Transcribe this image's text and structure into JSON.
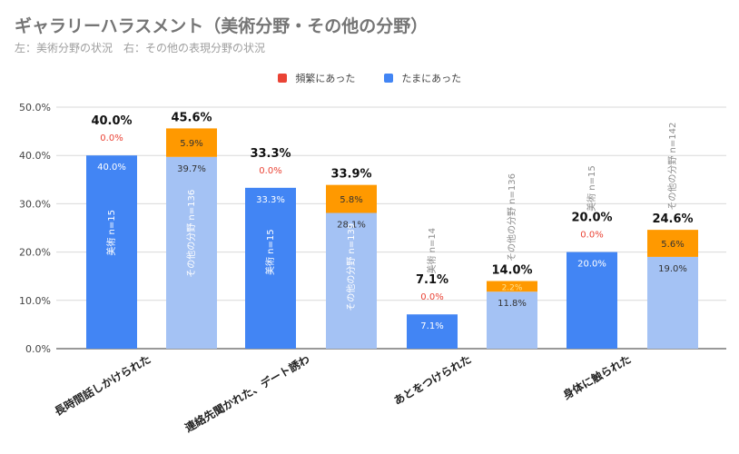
{
  "chart_data": {
    "type": "bar",
    "stacked": true,
    "title": "ギャラリーハラスメント（美術分野・その他の分野）",
    "subtitle": "左：美術分野の状況　右：その他の表現分野の状況",
    "legend": {
      "placement": "top-center",
      "items": [
        {
          "name": "頻繁にあった",
          "color": "#ea4335"
        },
        {
          "name": "たまにあった",
          "color": "#4285f4"
        }
      ]
    },
    "ylim": [
      0,
      50
    ],
    "yticks": [
      "0.0%",
      "10.0%",
      "20.0%",
      "30.0%",
      "40.0%",
      "50.0%"
    ],
    "grid": true,
    "categories": [
      "長時間話しかけられた",
      "連絡先聞かれた、デート誘わ",
      "あとをつけられた",
      "身体に触られた"
    ],
    "bars": [
      {
        "group": 0,
        "group_label": "長時間話しかけられた",
        "vlabel": "美術 n=15",
        "tamani": 40.0,
        "tamani_label": "40.0%",
        "tamani_color": "#4285f4",
        "hinpan": 0.0,
        "hinpan_label": "0.0%",
        "hinpan_color": "#ea4335",
        "total_label": "40.0%"
      },
      {
        "group": 0,
        "group_label": "",
        "vlabel": "その他の分野 n=136",
        "tamani": 39.7,
        "tamani_label": "39.7%",
        "tamani_color": "#a4c2f4",
        "hinpan": 5.9,
        "hinpan_label": "5.9%",
        "hinpan_color": "#ff9900",
        "total_label": "45.6%"
      },
      {
        "group": 1,
        "group_label": "連絡先聞かれた、デート誘わ",
        "vlabel": "美術 n=15",
        "tamani": 33.3,
        "tamani_label": "33.3%",
        "tamani_color": "#4285f4",
        "hinpan": 0.0,
        "hinpan_label": "0.0%",
        "hinpan_color": "#ea4335",
        "total_label": "33.3%"
      },
      {
        "group": 1,
        "group_label": "",
        "vlabel": "その他の分野 n=139",
        "tamani": 28.1,
        "tamani_label": "28.1%",
        "tamani_color": "#a4c2f4",
        "hinpan": 5.8,
        "hinpan_label": "5.8%",
        "hinpan_color": "#ff9900",
        "total_label": "33.9%"
      },
      {
        "group": 2,
        "group_label": "あとをつけられた",
        "vlabel": "美術 n=14",
        "tamani": 7.1,
        "tamani_label": "7.1%",
        "tamani_color": "#4285f4",
        "hinpan": 0.0,
        "hinpan_label": "0.0%",
        "hinpan_color": "#ea4335",
        "total_label": "7.1%"
      },
      {
        "group": 2,
        "group_label": "",
        "vlabel": "その他の分野 n=136",
        "tamani": 11.8,
        "tamani_label": "11.8%",
        "tamani_color": "#a4c2f4",
        "hinpan": 2.2,
        "hinpan_label": "2.2%",
        "hinpan_color": "#ff9900",
        "total_label": "14.0%"
      },
      {
        "group": 3,
        "group_label": "身体に触られた",
        "vlabel": "美術 n=15",
        "tamani": 20.0,
        "tamani_label": "20.0%",
        "tamani_color": "#4285f4",
        "hinpan": 0.0,
        "hinpan_label": "0.0%",
        "hinpan_color": "#ea4335",
        "total_label": "20.0%"
      },
      {
        "group": 3,
        "group_label": "",
        "vlabel": "その他の分野 n=142",
        "tamani": 19.0,
        "tamani_label": "19.0%",
        "tamani_color": "#a4c2f4",
        "hinpan": 5.6,
        "hinpan_label": "5.6%",
        "hinpan_color": "#ff9900",
        "total_label": "24.6%"
      }
    ]
  }
}
